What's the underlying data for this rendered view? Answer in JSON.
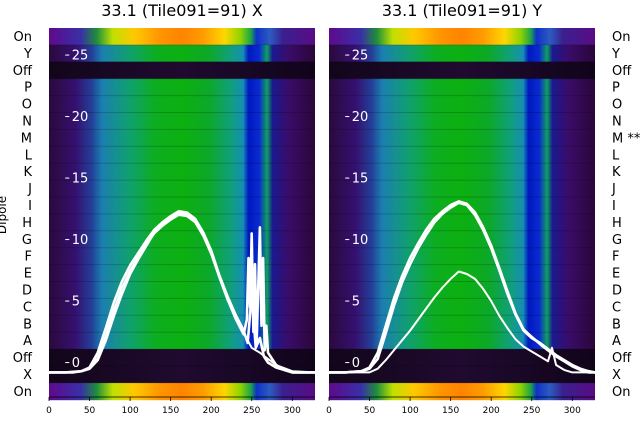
{
  "chart_data": [
    {
      "type": "heatmap",
      "title": "33.1 (Tile091=91) X",
      "ylabel": "Dipole",
      "row_labels": [
        "On",
        "Y",
        "Off",
        "P",
        "O",
        "N",
        "M",
        "L",
        "K",
        "J",
        "I",
        "H",
        "G",
        "F",
        "E",
        "D",
        "C",
        "B",
        "A",
        "Off",
        "X",
        "On"
      ],
      "x_ticks": [
        0,
        50,
        100,
        150,
        200,
        250,
        300
      ],
      "xlim": [
        0,
        328
      ],
      "inner_y_ticks": [
        0,
        5,
        10,
        15,
        20,
        25
      ],
      "inner_ylim": [
        -2.8,
        27.2
      ],
      "series": [
        {
          "x": [
            0,
            10,
            20,
            30,
            40,
            50,
            60,
            70,
            80,
            90,
            100,
            110,
            120,
            130,
            140,
            150,
            160,
            170,
            180,
            190,
            200,
            210,
            220,
            230,
            240,
            244,
            246,
            248,
            250,
            252,
            254,
            256,
            258,
            260,
            262,
            264,
            266,
            268,
            270,
            280,
            290,
            300,
            310,
            320,
            328
          ],
          "y": [
            -0.8,
            -0.8,
            -0.8,
            -0.8,
            -0.7,
            -0.5,
            0.2,
            1.8,
            3.8,
            5.6,
            7.2,
            8.4,
            9.5,
            10.6,
            11.2,
            11.7,
            12.1,
            12.0,
            11.5,
            10.5,
            9.0,
            7.0,
            5.2,
            3.6,
            2.3,
            3.5,
            8.5,
            4.5,
            10.5,
            2.5,
            8.0,
            1.5,
            6.0,
            11.0,
            3.0,
            8.5,
            1.0,
            3.0,
            0.8,
            -0.2,
            -0.6,
            -0.8,
            -0.8,
            -0.8,
            -0.8
          ]
        },
        {
          "x": [
            0,
            20,
            40,
            50,
            60,
            70,
            80,
            90,
            100,
            110,
            120,
            130,
            140,
            150,
            160,
            170,
            180,
            190,
            200,
            210,
            220,
            230,
            240,
            245,
            250,
            255,
            260,
            265,
            270,
            280,
            300,
            328
          ],
          "y": [
            -0.8,
            -0.8,
            -0.7,
            -0.4,
            0.8,
            2.8,
            4.9,
            6.6,
            7.9,
            8.9,
            9.9,
            10.8,
            11.4,
            11.9,
            12.3,
            12.2,
            11.7,
            10.6,
            9.1,
            7.1,
            5.4,
            3.9,
            2.6,
            1.6,
            5.5,
            1.2,
            2.0,
            0.5,
            0.0,
            -0.4,
            -0.8,
            -0.8
          ]
        },
        {
          "x": [
            0,
            20,
            40,
            50,
            60,
            70,
            80,
            90,
            100,
            110,
            120,
            130,
            140,
            150,
            160,
            170,
            180,
            190,
            200,
            210,
            220,
            230,
            240,
            245,
            250,
            260,
            270,
            280,
            300,
            328
          ],
          "y": [
            -0.8,
            -0.8,
            -0.7,
            -0.5,
            0.4,
            2.2,
            4.3,
            6.1,
            7.5,
            8.6,
            9.6,
            10.5,
            11.1,
            11.6,
            12.0,
            11.9,
            11.4,
            10.3,
            8.8,
            6.9,
            5.1,
            3.7,
            2.4,
            1.8,
            1.2,
            0.8,
            0.3,
            -0.2,
            -0.7,
            -0.8
          ]
        }
      ]
    },
    {
      "type": "heatmap",
      "title": "33.1 (Tile091=91) Y",
      "row_labels": [
        "On",
        "Y",
        "Off",
        "P",
        "O",
        "N",
        "M **",
        "L",
        "K",
        "J",
        "I",
        "H",
        "G",
        "F",
        "E",
        "D",
        "C",
        "B",
        "A",
        "Off",
        "X",
        "On"
      ],
      "x_ticks": [
        0,
        50,
        100,
        150,
        200,
        250,
        300
      ],
      "xlim": [
        0,
        328
      ],
      "inner_y_ticks": [
        0,
        5,
        10,
        15,
        20,
        25
      ],
      "inner_ylim": [
        -2.8,
        27.2
      ],
      "series": [
        {
          "x": [
            0,
            20,
            40,
            50,
            60,
            70,
            80,
            90,
            100,
            110,
            120,
            130,
            140,
            150,
            160,
            170,
            180,
            190,
            200,
            210,
            220,
            230,
            240,
            248,
            255,
            262,
            270,
            280,
            290,
            300,
            310,
            320,
            328
          ],
          "y": [
            -0.8,
            -0.8,
            -0.7,
            -0.4,
            0.8,
            3.0,
            5.2,
            7.0,
            8.5,
            9.7,
            10.8,
            11.7,
            12.3,
            12.8,
            13.1,
            12.9,
            12.2,
            11.0,
            9.5,
            7.7,
            5.8,
            4.0,
            2.7,
            2.2,
            1.8,
            1.4,
            1.0,
            0.5,
            0.1,
            -0.3,
            -0.6,
            -0.8,
            -0.8
          ]
        },
        {
          "x": [
            0,
            20,
            40,
            50,
            60,
            70,
            80,
            90,
            100,
            110,
            120,
            130,
            140,
            150,
            160,
            170,
            180,
            190,
            200,
            210,
            220,
            230,
            240,
            250,
            260,
            270,
            280,
            290,
            300,
            310,
            320,
            328
          ],
          "y": [
            -0.8,
            -0.8,
            -0.7,
            -0.5,
            0.3,
            2.4,
            4.6,
            6.5,
            8.0,
            9.3,
            10.4,
            11.4,
            12.1,
            12.6,
            13.0,
            12.8,
            12.0,
            10.8,
            9.3,
            7.5,
            5.6,
            3.9,
            2.6,
            2.0,
            1.6,
            1.1,
            0.6,
            0.2,
            -0.2,
            -0.5,
            -0.7,
            -0.8
          ]
        },
        {
          "x": [
            0,
            20,
            40,
            50,
            60,
            70,
            80,
            90,
            100,
            110,
            120,
            130,
            140,
            150,
            160,
            170,
            180,
            190,
            200,
            210,
            220,
            230,
            240,
            250,
            260,
            270,
            275,
            280,
            290,
            300,
            310,
            320,
            328
          ],
          "y": [
            -0.8,
            -0.8,
            -0.8,
            -0.8,
            -0.5,
            0.2,
            1.0,
            1.8,
            2.6,
            3.5,
            4.4,
            5.3,
            6.1,
            6.8,
            7.4,
            7.2,
            6.8,
            6.0,
            5.0,
            3.8,
            2.8,
            1.9,
            1.3,
            0.9,
            0.5,
            0.1,
            1.2,
            -0.2,
            -0.6,
            -0.8,
            -0.8,
            -0.8,
            -0.8
          ]
        }
      ]
    }
  ]
}
